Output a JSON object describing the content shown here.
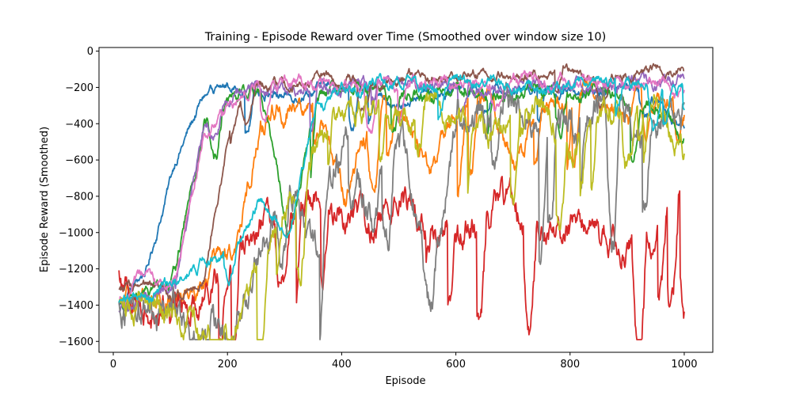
{
  "chart_data": {
    "type": "line",
    "title": "Training - Episode Reward over Time (Smoothed over window size 10)",
    "xlabel": "Episode",
    "ylabel": "Episode Reward (Smoothed)",
    "xlim": [
      -25,
      1050
    ],
    "ylim": [
      -1660,
      20
    ],
    "xticks": [
      0,
      200,
      400,
      600,
      800,
      1000
    ],
    "yticks": [
      0,
      -200,
      -400,
      -600,
      -800,
      -1000,
      -1200,
      -1400,
      -1600
    ],
    "x_range": [
      10,
      1000
    ],
    "grid": false,
    "legend": "none",
    "series": [
      {
        "color": "#1f77b4",
        "plateau": -200,
        "noise": 60,
        "dips": "rare",
        "values": [
          -1400,
          -1200,
          -600,
          -250,
          -180,
          -220,
          -250,
          -200,
          -190,
          -250,
          -300,
          -220,
          -200,
          -210,
          -190,
          -200,
          -220,
          -250,
          -180,
          -300,
          -400
        ]
      },
      {
        "color": "#ff7f0e",
        "plateau": -250,
        "noise": 120,
        "dips": "frequent",
        "values": [
          -1400,
          -1380,
          -1350,
          -1250,
          -1150,
          -400,
          -300,
          -350,
          -800,
          -350,
          -300,
          -650,
          -300,
          -250,
          -600,
          -320,
          -300,
          -250,
          -280,
          -260,
          -300
        ]
      },
      {
        "color": "#2ca02c",
        "plateau": -200,
        "noise": 80,
        "dips": "rare",
        "values": [
          -1400,
          -1350,
          -1200,
          -400,
          -250,
          -220,
          -1000,
          -250,
          -220,
          -200,
          -240,
          -260,
          -200,
          -230,
          -210,
          -220,
          -250,
          -230,
          -260,
          -300,
          -480
        ]
      },
      {
        "color": "#d62728",
        "plateau": -900,
        "noise": 180,
        "dips": "frequent",
        "values": [
          -1250,
          -1400,
          -1450,
          -1300,
          -1100,
          -1000,
          -900,
          -850,
          -950,
          -900,
          -800,
          -1000,
          -1050,
          -900,
          -850,
          -1000,
          -950,
          -1000,
          -1100,
          -1050,
          -800
        ]
      },
      {
        "color": "#9467bd",
        "plateau": -180,
        "noise": 70,
        "dips": "rare",
        "values": [
          -1450,
          -1350,
          -1300,
          -400,
          -250,
          -200,
          -220,
          -180,
          -200,
          -190,
          -210,
          -200,
          -180,
          -220,
          -200,
          -190,
          -210,
          -200,
          -190,
          -180,
          -160
        ]
      },
      {
        "color": "#8c564b",
        "plateau": -150,
        "noise": 60,
        "dips": "rare",
        "values": [
          -1300,
          -1320,
          -1350,
          -1250,
          -350,
          -200,
          -180,
          -150,
          -160,
          -170,
          -140,
          -160,
          -150,
          -130,
          -140,
          -160,
          -120,
          -150,
          -140,
          -130,
          -110
        ]
      },
      {
        "color": "#e377c2",
        "plateau": -170,
        "noise": 70,
        "dips": "rare",
        "values": [
          -1380,
          -1250,
          -1300,
          -420,
          -300,
          -200,
          -180,
          -170,
          -190,
          -180,
          -160,
          -170,
          -200,
          -180,
          -170,
          -160,
          -180,
          -170,
          -190,
          -180,
          -200
        ]
      },
      {
        "color": "#7f7f7f",
        "plateau": -350,
        "noise": 200,
        "dips": "frequent",
        "values": [
          -1350,
          -1400,
          -1450,
          -1500,
          -1550,
          -1100,
          -700,
          -1200,
          -450,
          -900,
          -400,
          -1400,
          -350,
          -400,
          -300,
          -350,
          -400,
          -300,
          -350,
          -400,
          -350
        ]
      },
      {
        "color": "#bcbd22",
        "plateau": -280,
        "noise": 150,
        "dips": "frequent",
        "values": [
          -1350,
          -1400,
          -1450,
          -1500,
          -1550,
          -1200,
          -800,
          -500,
          -350,
          -300,
          -400,
          -300,
          -350,
          -500,
          -350,
          -300,
          -600,
          -400,
          -350,
          -300,
          -600
        ]
      },
      {
        "color": "#17becf",
        "plateau": -170,
        "noise": 70,
        "dips": "rare",
        "values": [
          -1380,
          -1360,
          -1300,
          -1150,
          -1200,
          -800,
          -1000,
          -300,
          -200,
          -180,
          -160,
          -200,
          -150,
          -170,
          -180,
          -200,
          -190,
          -170,
          -160,
          -180,
          -200
        ]
      }
    ]
  }
}
